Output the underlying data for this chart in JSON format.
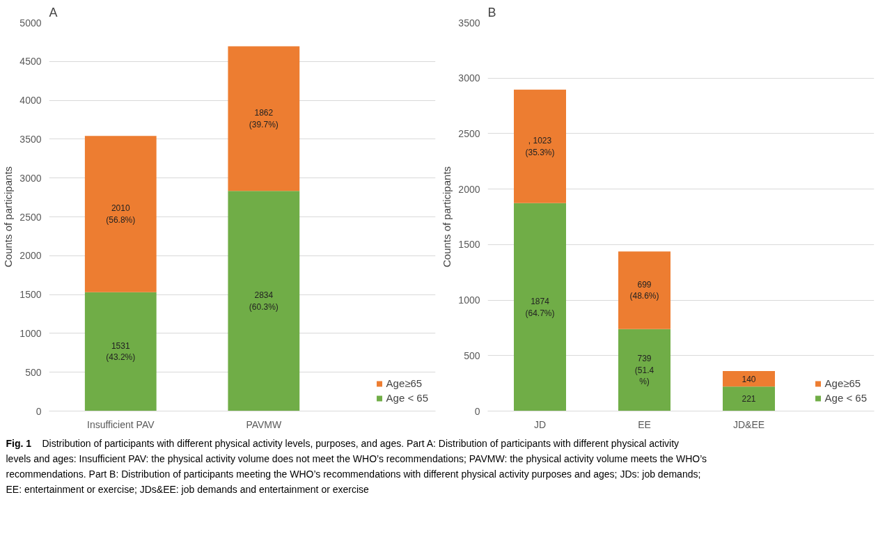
{
  "chart_data": [
    {
      "type": "bar",
      "title": "A",
      "ylabel": "Counts of participants",
      "categories": [
        "Insufficient PAV",
        "PAVMW"
      ],
      "stacked": true,
      "ylim": [
        0,
        5000
      ],
      "yticks": [
        0,
        500,
        1000,
        1500,
        2000,
        2500,
        3000,
        3500,
        4000,
        4500,
        5000
      ],
      "grid": "y",
      "legend": "bottom right",
      "series": [
        {
          "name": "Age < 65",
          "color": "#70ad47",
          "values": [
            1531,
            2834
          ],
          "value_labels": [
            "1531\n(43.2%)",
            "2834\n(60.3%)"
          ]
        },
        {
          "name": "Age≥65",
          "color": "#ed7d31",
          "values": [
            2010,
            1862
          ],
          "value_labels": [
            "2010\n(56.8%)",
            "1862\n(39.7%)"
          ]
        }
      ],
      "annotations": [
        "Fig. 1",
        "Distribution of participants with different physical activity levels, purposes, and ages. Part A: Distribution of participants with different physical activity levels and ages: Insufficient PAV: the physical activity volume does not meet the WHO’s recommendations; PAVMW: the physical activity volume meets the WHO’s recommendations. Part B: Distribution of participants meeting the WHO’s recommendations with different physical activity purposes and ages; JDs: job demands; EE: entertainment or exercise; JDs&EE: job demands and entertainment or exercise"
      ]
    },
    {
      "type": "bar",
      "title": "B",
      "ylabel": "Counts of participants",
      "categories": [
        "JD",
        "EE",
        "JD&EE"
      ],
      "stacked": true,
      "ylim": [
        0,
        3500
      ],
      "yticks": [
        0,
        500,
        1000,
        1500,
        2000,
        2500,
        3000,
        3500
      ],
      "grid": "y",
      "legend": "bottom right",
      "series": [
        {
          "name": "Age < 65",
          "color": "#70ad47",
          "values": [
            1874,
            739,
            221
          ],
          "value_labels": [
            "1874\n(64.7%)",
            "739\n(51.4\n%)",
            "221"
          ]
        },
        {
          "name": "Age≥65",
          "color": "#ed7d31",
          "values": [
            1023,
            699,
            140
          ],
          "value_labels": [
            ", 1023\n(35.3%)",
            "699\n(48.6%)",
            "140"
          ]
        }
      ]
    }
  ]
}
